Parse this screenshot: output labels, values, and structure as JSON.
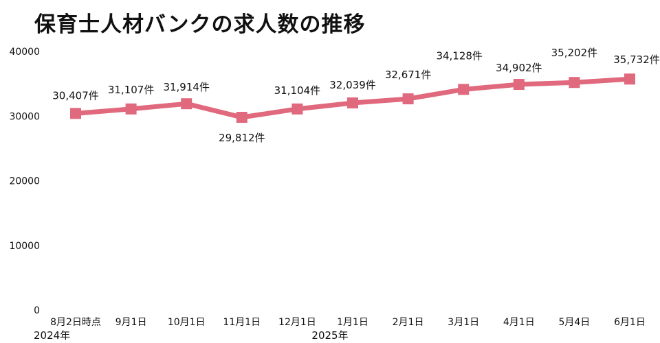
{
  "title": "保育士人材バンクの求人数の推移",
  "chart_data": {
    "type": "line",
    "title": "保育士人材バンクの求人数の推移",
    "xlabel": "",
    "ylabel": "",
    "ylim": [
      0,
      40000
    ],
    "yticks": [
      "0",
      "10000",
      "20000",
      "30000",
      "40000"
    ],
    "grid": false,
    "legend": "none",
    "categories": [
      "8月2日時点",
      "9月1日",
      "10月1日",
      "11月1日",
      "12月1日",
      "1月1日",
      "2月1日",
      "3月1日",
      "4月1日",
      "5月4日",
      "6月1日"
    ],
    "year_labels": [
      "2024年",
      "2025年"
    ],
    "series": [
      {
        "values": [
          30407,
          31107,
          31914,
          29812,
          31104,
          32039,
          32671,
          34128,
          34902,
          35202,
          35732
        ],
        "data_labels": [
          "30,407件",
          "31,107件",
          "31,914件",
          "29,812件",
          "31,104件",
          "32,039件",
          "32,671件",
          "34,128件",
          "34,902件",
          "35,202件",
          "35,732件"
        ],
        "color": "#e0697d"
      }
    ]
  }
}
